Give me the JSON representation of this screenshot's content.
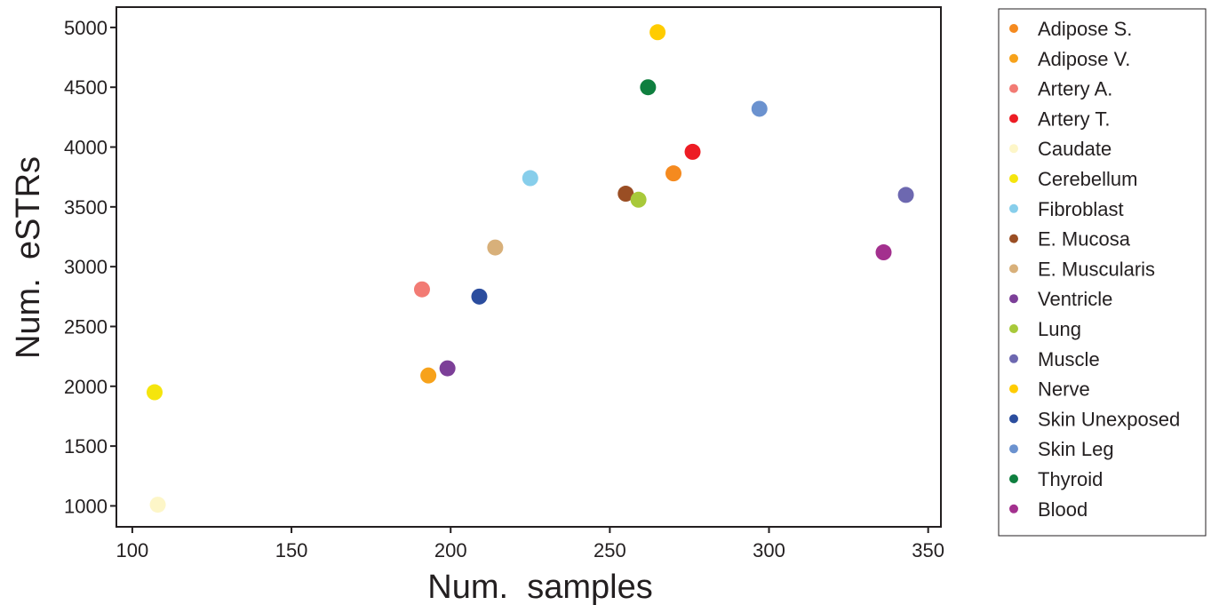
{
  "chart_data": {
    "type": "scatter",
    "xlabel": "Num.  samples",
    "ylabel": "Num.  eSTRs",
    "xlim": [
      95,
      354
    ],
    "ylim": [
      825,
      5170
    ],
    "xticks": [
      100,
      150,
      200,
      250,
      300,
      350
    ],
    "yticks": [
      1000,
      1500,
      2000,
      2500,
      3000,
      3500,
      4000,
      4500,
      5000
    ],
    "grid": false,
    "legend_position": "outside-right",
    "points": [
      {
        "label": "Adipose S.",
        "color": "#f58a1f",
        "x": 270,
        "y": 3780
      },
      {
        "label": "Adipose V.",
        "color": "#f7a21b",
        "x": 193,
        "y": 2090
      },
      {
        "label": "Artery A.",
        "color": "#f27b74",
        "x": 191,
        "y": 2810
      },
      {
        "label": "Artery T.",
        "color": "#ed1c24",
        "x": 276,
        "y": 3960
      },
      {
        "label": "Caudate",
        "color": "#fdf6c8",
        "x": 108,
        "y": 1010
      },
      {
        "label": "Cerebellum",
        "color": "#f5e50d",
        "x": 107,
        "y": 1950
      },
      {
        "label": "Fibroblast",
        "color": "#87ceeb",
        "x": 225,
        "y": 3740
      },
      {
        "label": "E. Mucosa",
        "color": "#9a4e24",
        "x": 255,
        "y": 3610
      },
      {
        "label": "E. Muscularis",
        "color": "#d8b07a",
        "x": 214,
        "y": 3160
      },
      {
        "label": "Ventricle",
        "color": "#7c3f98",
        "x": 199,
        "y": 2150
      },
      {
        "label": "Lung",
        "color": "#a8c93a",
        "x": 259,
        "y": 3560
      },
      {
        "label": "Muscle",
        "color": "#6d68b0",
        "x": 343,
        "y": 3600
      },
      {
        "label": "Nerve",
        "color": "#ffcc00",
        "x": 265,
        "y": 4960
      },
      {
        "label": "Skin Unexposed",
        "color": "#2b4d9e",
        "x": 209,
        "y": 2750
      },
      {
        "label": "Skin Leg",
        "color": "#6b92cf",
        "x": 297,
        "y": 4320
      },
      {
        "label": "Thyroid",
        "color": "#0f7f3f",
        "x": 262,
        "y": 4500
      },
      {
        "label": "Blood",
        "color": "#a3308e",
        "x": 336,
        "y": 3120
      }
    ]
  }
}
